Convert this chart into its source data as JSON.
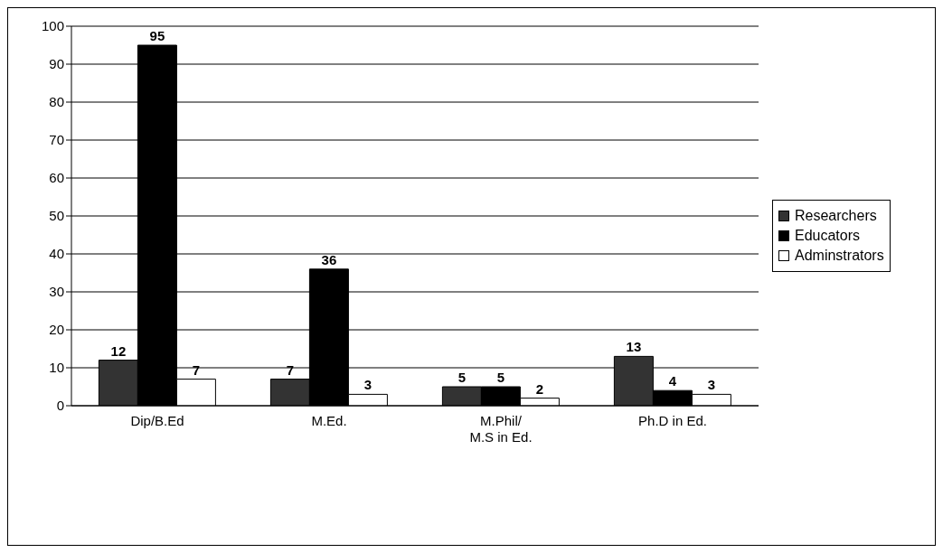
{
  "chart_data": {
    "type": "bar",
    "categories": [
      "Dip/B.Ed",
      "M.Ed.",
      "M.Phil/ M.S in Ed.",
      "Ph.D in Ed."
    ],
    "series": [
      {
        "name": "Researchers",
        "color": "#333333",
        "values": [
          12,
          7,
          5,
          13
        ]
      },
      {
        "name": "Educators",
        "color": "#000000",
        "values": [
          95,
          36,
          5,
          4
        ]
      },
      {
        "name": "Adminstrators",
        "color": "#ffffff",
        "values": [
          7,
          3,
          2,
          3
        ]
      }
    ],
    "ylim": [
      0,
      100
    ],
    "yticks": [
      0,
      10,
      20,
      30,
      40,
      50,
      60,
      70,
      80,
      90,
      100
    ],
    "grid": "y",
    "legend": "right",
    "data_labels": true
  }
}
